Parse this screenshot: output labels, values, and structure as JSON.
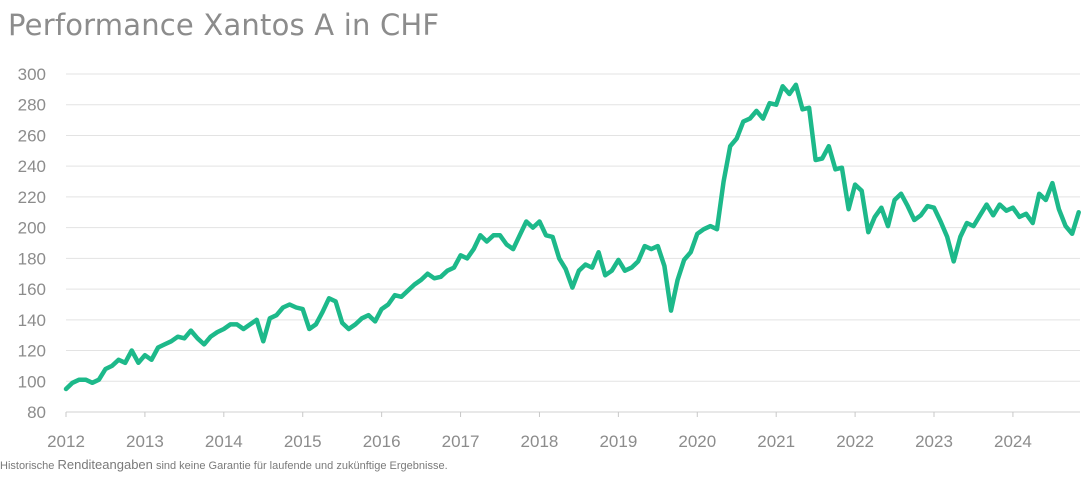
{
  "chart_data": {
    "type": "line",
    "title": "Performance Xantos A in CHF",
    "xlabel": "",
    "ylabel": "",
    "ylim": [
      80,
      300
    ],
    "y_ticks": [
      80,
      100,
      120,
      140,
      160,
      180,
      200,
      220,
      240,
      260,
      280,
      300
    ],
    "x_ticks": [
      "2012",
      "2013",
      "2014",
      "2015",
      "2016",
      "2017",
      "2018",
      "2019",
      "2020",
      "2021",
      "2022",
      "2023",
      "2024"
    ],
    "xlim": [
      2012.0,
      2024.85
    ],
    "grid": "horizontal",
    "line_color": "#1db98a",
    "series": [
      {
        "x": [
          2012.0,
          2012.083,
          2012.167,
          2012.25,
          2012.333,
          2012.417,
          2012.5,
          2012.583,
          2012.667,
          2012.75,
          2012.833,
          2012.917,
          2013.0,
          2013.083,
          2013.167,
          2013.25,
          2013.333,
          2013.417,
          2013.5,
          2013.583,
          2013.667,
          2013.75,
          2013.833,
          2013.917,
          2014.0,
          2014.083,
          2014.167,
          2014.25,
          2014.333,
          2014.417,
          2014.5,
          2014.583,
          2014.667,
          2014.75,
          2014.833,
          2014.917,
          2015.0,
          2015.083,
          2015.167,
          2015.25,
          2015.333,
          2015.417,
          2015.5,
          2015.583,
          2015.667,
          2015.75,
          2015.833,
          2015.917,
          2016.0,
          2016.083,
          2016.167,
          2016.25,
          2016.333,
          2016.417,
          2016.5,
          2016.583,
          2016.667,
          2016.75,
          2016.833,
          2016.917,
          2017.0,
          2017.083,
          2017.167,
          2017.25,
          2017.333,
          2017.417,
          2017.5,
          2017.583,
          2017.667,
          2017.75,
          2017.833,
          2017.917,
          2018.0,
          2018.083,
          2018.167,
          2018.25,
          2018.333,
          2018.417,
          2018.5,
          2018.583,
          2018.667,
          2018.75,
          2018.833,
          2018.917,
          2019.0,
          2019.083,
          2019.167,
          2019.25,
          2019.333,
          2019.417,
          2019.5,
          2019.583,
          2019.667,
          2019.75,
          2019.833,
          2019.917,
          2020.0,
          2020.083,
          2020.167,
          2020.25,
          2020.333,
          2020.417,
          2020.5,
          2020.583,
          2020.667,
          2020.75,
          2020.833,
          2020.917,
          2021.0,
          2021.083,
          2021.167,
          2021.25,
          2021.333,
          2021.417,
          2021.5,
          2021.583,
          2021.667,
          2021.75,
          2021.833,
          2021.917,
          2022.0,
          2022.083,
          2022.167,
          2022.25,
          2022.333,
          2022.417,
          2022.5,
          2022.583,
          2022.667,
          2022.75,
          2022.833,
          2022.917,
          2023.0,
          2023.083,
          2023.167,
          2023.25,
          2023.333,
          2023.417,
          2023.5,
          2023.583,
          2023.667,
          2023.75,
          2023.833,
          2023.917,
          2024.0,
          2024.083,
          2024.167,
          2024.25,
          2024.333,
          2024.417,
          2024.5,
          2024.583,
          2024.667,
          2024.75,
          2024.833
        ],
        "y": [
          95,
          99,
          101,
          101,
          99,
          101,
          108,
          110,
          114,
          112,
          120,
          112,
          117,
          114,
          122,
          124,
          126,
          129,
          128,
          133,
          128,
          124,
          129,
          132,
          134,
          137,
          137,
          134,
          137,
          140,
          126,
          141,
          143,
          148,
          150,
          148,
          147,
          134,
          137,
          145,
          154,
          152,
          138,
          134,
          137,
          141,
          143,
          139,
          147,
          150,
          156,
          155,
          159,
          163,
          166,
          170,
          167,
          168,
          172,
          174,
          182,
          180,
          186,
          195,
          191,
          195,
          195,
          189,
          186,
          195,
          204,
          200,
          204,
          195,
          194,
          180,
          173,
          161,
          172,
          176,
          174,
          184,
          169,
          172,
          179,
          172,
          174,
          178,
          188,
          186,
          188,
          175,
          146,
          166,
          179,
          184,
          196,
          199,
          201,
          199,
          230,
          253,
          258,
          269,
          271,
          276,
          271,
          281,
          280,
          292,
          287,
          293,
          277,
          278,
          244,
          245,
          253,
          238,
          239,
          212,
          228,
          224,
          197,
          207,
          213,
          201,
          218,
          222,
          214,
          205,
          208,
          214,
          213,
          204,
          194,
          178,
          194,
          203,
          201,
          208,
          215,
          208,
          215,
          211,
          213,
          207,
          209,
          203,
          222,
          218,
          229,
          212,
          201,
          196,
          210
        ]
      }
    ]
  },
  "footnote": {
    "prefix": "Historische ",
    "emphasis": "Renditeangaben",
    "suffix": " sind keine Garantie für laufende und zukünftige Ergebnisse."
  }
}
